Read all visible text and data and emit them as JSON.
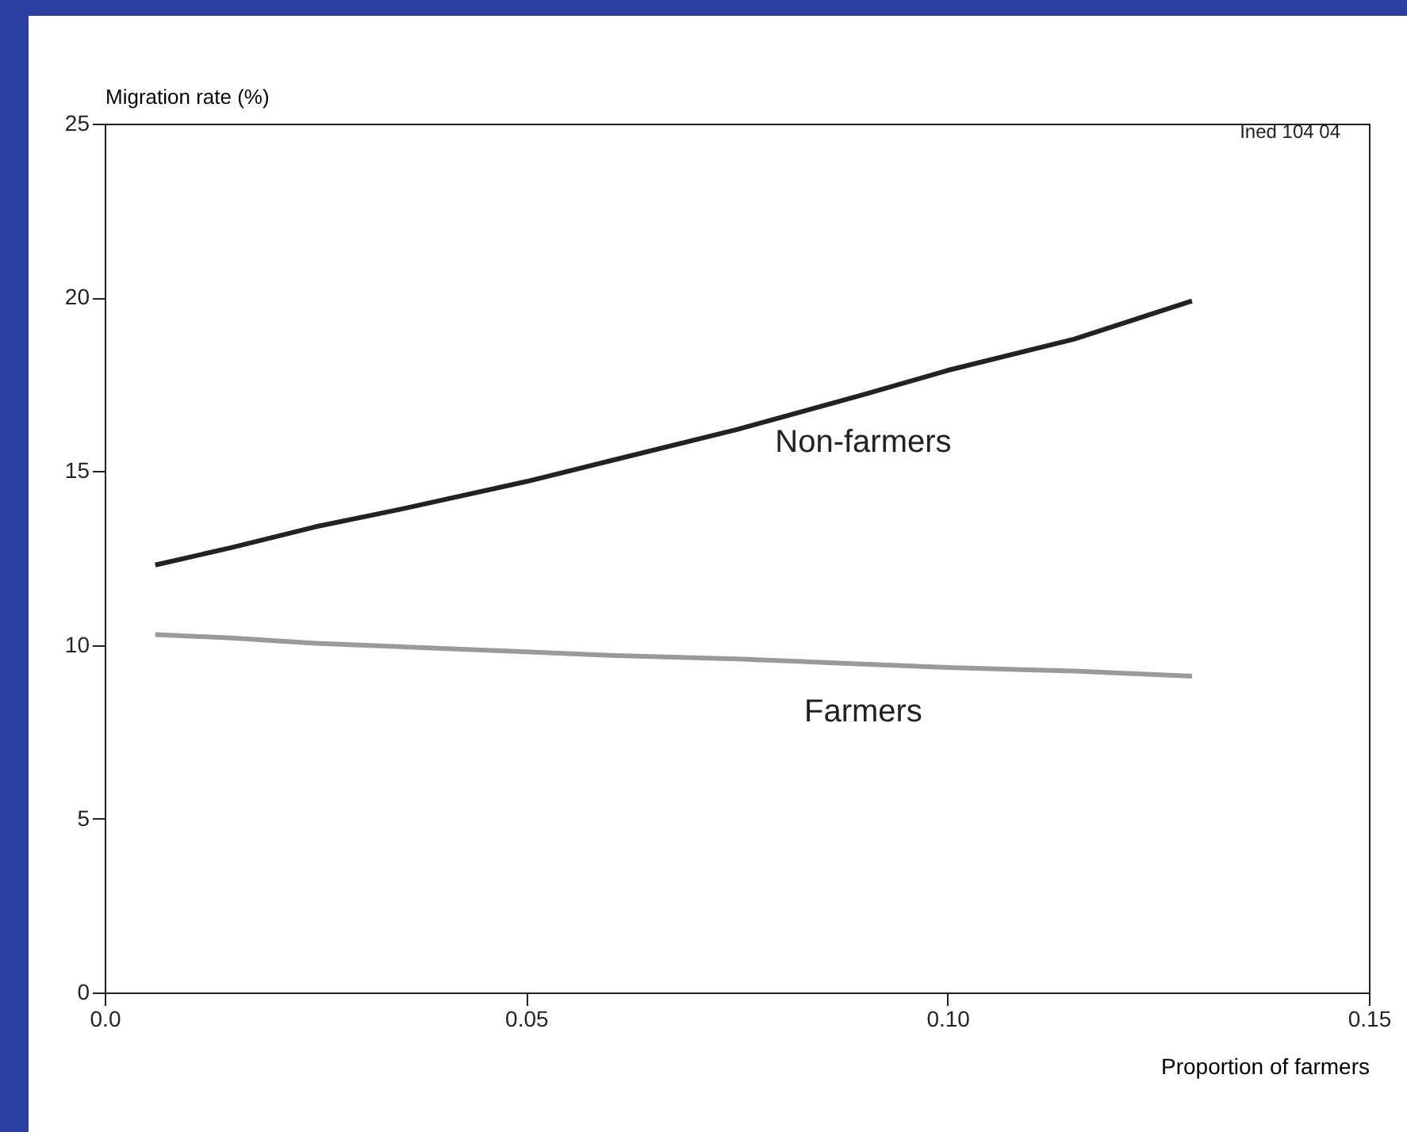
{
  "chart_data": {
    "type": "line",
    "xlabel": "Proportion of farmers",
    "ylabel": "Migration rate (%)",
    "annotations": [
      "Ined 104 04"
    ],
    "xlim": [
      0,
      0.15
    ],
    "xticks": [
      {
        "value": 0,
        "label": "0.0"
      },
      0.05,
      {
        "value": 0.1,
        "label": "0.10"
      },
      0.15
    ],
    "ylim": [
      0,
      25
    ],
    "yticks": [
      0,
      5,
      10,
      15,
      20,
      25
    ],
    "grid": false,
    "legend": false,
    "series": [
      {
        "name": "Non-farmers",
        "color": "#222222",
        "x": [
          0.006,
          0.015,
          0.025,
          0.035,
          0.05,
          0.06,
          0.075,
          0.09,
          0.1,
          0.115,
          0.129
        ],
        "values": [
          12.3,
          12.8,
          13.4,
          13.9,
          14.7,
          15.3,
          16.2,
          17.2,
          17.9,
          18.8,
          19.9
        ]
      },
      {
        "name": "Farmers",
        "color": "#9a9a9a",
        "x": [
          0.006,
          0.015,
          0.025,
          0.035,
          0.05,
          0.06,
          0.075,
          0.09,
          0.1,
          0.115,
          0.129
        ],
        "values": [
          10.3,
          10.2,
          10.05,
          9.95,
          9.8,
          9.7,
          9.6,
          9.45,
          9.35,
          9.25,
          9.1
        ]
      }
    ]
  }
}
